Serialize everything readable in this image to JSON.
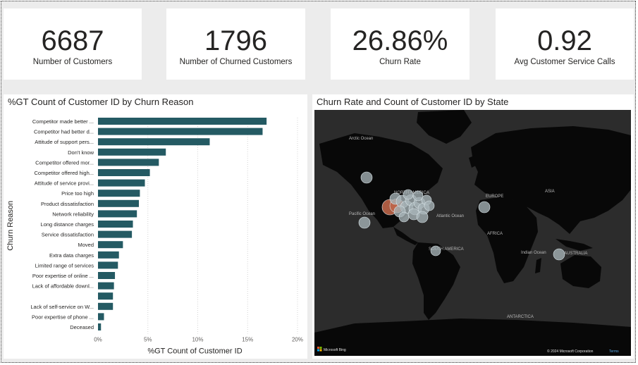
{
  "kpis": [
    {
      "value": "6687",
      "label": "Number of Customers"
    },
    {
      "value": "1796",
      "label": "Number of Churned Customers"
    },
    {
      "value": "26.86%",
      "label": "Churn Rate"
    },
    {
      "value": "0.92",
      "label": "Avg Customer Service Calls"
    }
  ],
  "bar_panel": {
    "title": "%GT Count of Customer ID by Churn Reason"
  },
  "map_panel": {
    "title": "Churn Rate and Count of Customer ID by State",
    "labels": {
      "arctic": "Arctic Ocean",
      "north_america": "NORTH AMERICA",
      "europe": "EUROPE",
      "asia": "ASIA",
      "pacific": "Pacific Ocean",
      "atlantic": "Atlantic Ocean",
      "africa": "AFRICA",
      "south_america": "SOUTH AMERICA",
      "indian": "Indian Ocean",
      "australia": "AUSTRALIA",
      "antarctica": "ANTARCTICA"
    },
    "bing_logo": "Microsoft Bing",
    "copyright": "© 2024 Microsoft Corporation",
    "terms": "Terms"
  },
  "chart_data": {
    "type": "bar",
    "orientation": "horizontal",
    "title": "%GT Count of Customer ID by Churn Reason",
    "xlabel": "%GT Count of Customer ID",
    "ylabel": "Churn Reason",
    "xlim": [
      0,
      20
    ],
    "xticks": [
      "0%",
      "5%",
      "10%",
      "15%",
      "20%"
    ],
    "grid": true,
    "bar_color": "#245a63",
    "categories": [
      "Competitor made better ...",
      "Competitor had better d...",
      "Attitude of support pers...",
      "Don't know",
      "Competitor offered mor...",
      "Competitor offered high...",
      "Attitude of service provi...",
      "Price too high",
      "Product dissatisfaction",
      "Network reliability",
      "Long distance charges",
      "Service dissatisfaction",
      "Moved",
      "Extra data charges",
      "Limited range of services",
      "Poor expertise of online ...",
      "Lack of affordable downl...",
      "",
      "Lack of self-service on W...",
      "Poor expertise of phone ...",
      "Deceased"
    ],
    "values": [
      16.9,
      16.5,
      11.2,
      6.8,
      6.1,
      5.2,
      4.7,
      4.2,
      4.1,
      3.9,
      3.5,
      3.4,
      2.5,
      2.1,
      2.0,
      1.7,
      1.6,
      1.5,
      1.5,
      0.6,
      0.3
    ]
  }
}
